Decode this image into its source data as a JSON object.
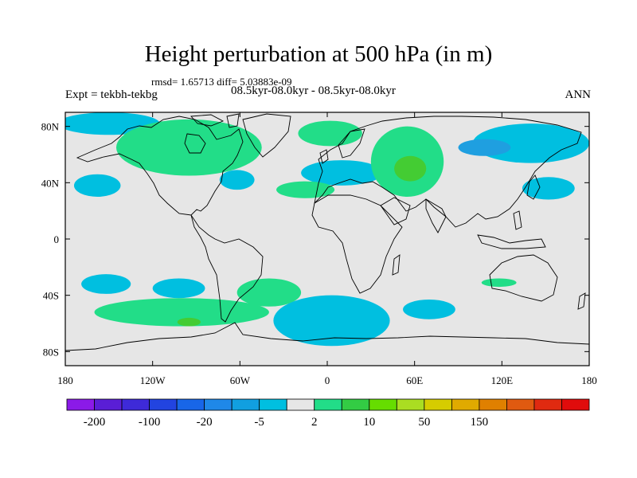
{
  "title": "Height perturbation at 500 hPa (in m)",
  "rmsd_text": "rmsd= 1.65713 diff= 5.03883e-09",
  "experiment": "Expt = tekbh-tekbg",
  "subtitle": "08.5kyr-08.0kyr - 08.5kyr-08.0kyr",
  "season": "ANN",
  "map": {
    "lon_range": [
      -180,
      180
    ],
    "lat_range": [
      -90,
      90
    ],
    "lon_ticks": [
      {
        "value": -180,
        "label": "180"
      },
      {
        "value": -120,
        "label": "120W"
      },
      {
        "value": -60,
        "label": "60W"
      },
      {
        "value": 0,
        "label": "0"
      },
      {
        "value": 60,
        "label": "60E"
      },
      {
        "value": 120,
        "label": "120E"
      },
      {
        "value": 180,
        "label": "180"
      }
    ],
    "lat_ticks": [
      {
        "value": 80,
        "label": "80N"
      },
      {
        "value": 40,
        "label": "40N"
      },
      {
        "value": 0,
        "label": "0"
      },
      {
        "value": -40,
        "label": "40S"
      },
      {
        "value": -80,
        "label": "80S"
      }
    ],
    "background_color": "#e6e6e6",
    "colors": {
      "light_blue": "#00bfe0",
      "medium_blue": "#1f9fe0",
      "light_green": "#22dd88",
      "green": "#44cc33",
      "yellow_green": "#99dd22"
    },
    "regions": [
      {
        "lon": -150,
        "lat": 82,
        "rlon": 35,
        "rlat": 8,
        "level": "light_blue"
      },
      {
        "lon": -95,
        "lat": 65,
        "rlon": 50,
        "rlat": 20,
        "level": "light_green"
      },
      {
        "lon": -158,
        "lat": 38,
        "rlon": 16,
        "rlat": 8,
        "level": "light_blue"
      },
      {
        "lon": -62,
        "lat": 42,
        "rlon": 12,
        "rlat": 7,
        "level": "light_blue"
      },
      {
        "lon": 2,
        "lat": 75,
        "rlon": 22,
        "rlat": 9,
        "level": "light_green"
      },
      {
        "lon": 10,
        "lat": 47,
        "rlon": 28,
        "rlat": 9,
        "level": "light_blue"
      },
      {
        "lon": -15,
        "lat": 35,
        "rlon": 20,
        "rlat": 6,
        "level": "light_green"
      },
      {
        "lon": 55,
        "lat": 55,
        "rlon": 25,
        "rlat": 25,
        "level": "light_green"
      },
      {
        "lon": 57,
        "lat": 50,
        "rlon": 11,
        "rlat": 9,
        "level": "green"
      },
      {
        "lon": 140,
        "lat": 68,
        "rlon": 40,
        "rlat": 14,
        "level": "light_blue"
      },
      {
        "lon": 108,
        "lat": 65,
        "rlon": 18,
        "rlat": 6,
        "level": "medium_blue"
      },
      {
        "lon": 152,
        "lat": 36,
        "rlon": 18,
        "rlat": 8,
        "level": "light_blue"
      },
      {
        "lon": -152,
        "lat": -32,
        "rlon": 17,
        "rlat": 7,
        "level": "light_blue"
      },
      {
        "lon": -102,
        "lat": -35,
        "rlon": 18,
        "rlat": 7,
        "level": "light_blue"
      },
      {
        "lon": -100,
        "lat": -52,
        "rlon": 60,
        "rlat": 10,
        "level": "light_green"
      },
      {
        "lon": -40,
        "lat": -38,
        "rlon": 22,
        "rlat": 10,
        "level": "light_green"
      },
      {
        "lon": -95,
        "lat": -59,
        "rlon": 8,
        "rlat": 3,
        "level": "green"
      },
      {
        "lon": 3,
        "lat": -58,
        "rlon": 40,
        "rlat": 18,
        "level": "light_blue"
      },
      {
        "lon": 70,
        "lat": -50,
        "rlon": 18,
        "rlat": 7,
        "level": "light_blue"
      },
      {
        "lon": 118,
        "lat": -31,
        "rlon": 12,
        "rlat": 3,
        "level": "light_green"
      }
    ]
  },
  "colorbar": {
    "colors": [
      "#8b1ae8",
      "#5a1ed6",
      "#3e2ad8",
      "#2244e0",
      "#1866e8",
      "#1f88e8",
      "#119fe0",
      "#00bfe0",
      "#e6e6e6",
      "#22dd88",
      "#33cc44",
      "#66dd00",
      "#aadd22",
      "#d6cc00",
      "#e0aa00",
      "#e08000",
      "#e05a10",
      "#e02a10",
      "#e00c0c"
    ],
    "labels": [
      "-200",
      "-100",
      "-20",
      "-5",
      "2",
      "10",
      "50",
      "150"
    ],
    "label_boundaries": [
      1,
      3,
      5,
      7,
      9,
      11,
      13,
      15
    ]
  }
}
